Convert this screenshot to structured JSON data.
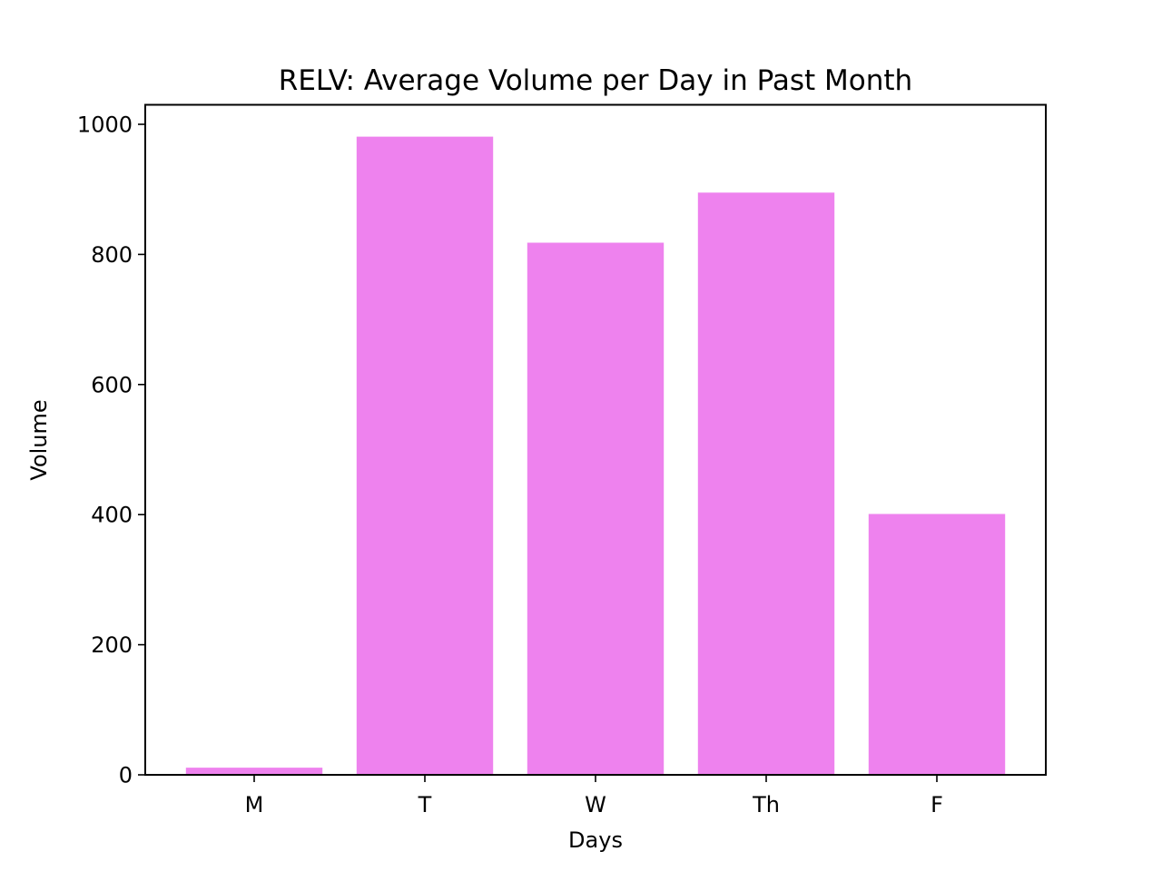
{
  "chart_data": {
    "type": "bar",
    "title": "RELV: Average Volume per Day in Past Month",
    "xlabel": "Days",
    "ylabel": "Volume",
    "categories": [
      "M",
      "T",
      "W",
      "Th",
      "F"
    ],
    "values": [
      11,
      981,
      818,
      895,
      401
    ],
    "ylim": [
      0,
      1030
    ],
    "yticks": [
      0,
      200,
      400,
      600,
      800,
      1000
    ],
    "bar_color": "#ee82ee",
    "grid": false,
    "legend": "none"
  }
}
